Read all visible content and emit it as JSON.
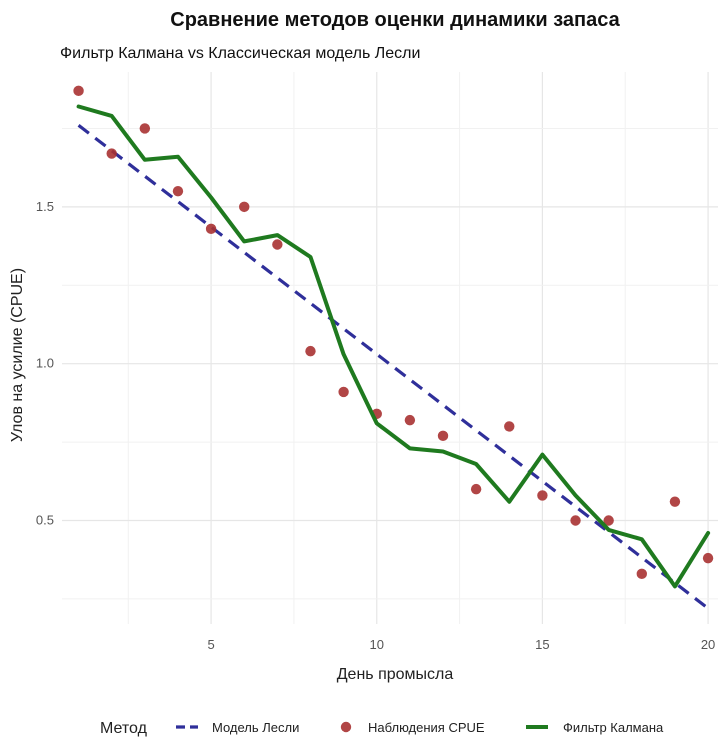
{
  "chart_data": {
    "type": "line",
    "title": "Сравнение методов оценки динамики запаса",
    "subtitle": "Фильтр Калмана vs Классическая модель Лесли",
    "xlabel": "День промысла",
    "ylabel": "Улов на усилие (CPUE)",
    "xlim": [
      0.5,
      20.3
    ],
    "ylim": [
      0.17,
      1.93
    ],
    "x_ticks": [
      5,
      10,
      15,
      20
    ],
    "y_ticks": [
      0.5,
      1.0,
      1.5
    ],
    "y_tick_labels": [
      "0.5",
      "1.0",
      "1.5"
    ],
    "grid": true,
    "legend_position": "bottom",
    "legend_title": "Метод",
    "series": [
      {
        "name": "Модель Лесли",
        "style": "dashed-line",
        "color": "#2f2f9a",
        "x": [
          1,
          20
        ],
        "values": [
          1.76,
          0.22
        ]
      },
      {
        "name": "Наблюдения CPUE",
        "style": "points",
        "color": "#a83232",
        "x": [
          1,
          2,
          3,
          4,
          5,
          6,
          7,
          8,
          9,
          10,
          11,
          12,
          13,
          14,
          15,
          16,
          17,
          18,
          19,
          20
        ],
        "values": [
          1.87,
          1.67,
          1.75,
          1.55,
          1.43,
          1.5,
          1.38,
          1.04,
          0.91,
          0.84,
          0.82,
          0.77,
          0.6,
          0.8,
          0.58,
          0.5,
          0.5,
          0.33,
          0.56,
          0.38
        ]
      },
      {
        "name": "Фильтр Калмана",
        "style": "solid-line",
        "color": "#1f7a1f",
        "x": [
          1,
          2,
          3,
          4,
          5,
          6,
          7,
          8,
          9,
          10,
          11,
          12,
          13,
          14,
          15,
          16,
          17,
          18,
          19,
          20
        ],
        "values": [
          1.82,
          1.79,
          1.65,
          1.66,
          1.53,
          1.39,
          1.41,
          1.34,
          1.03,
          0.81,
          0.73,
          0.72,
          0.68,
          0.56,
          0.71,
          0.58,
          0.47,
          0.44,
          0.29,
          0.46
        ]
      }
    ],
    "legend_order": [
      "Модель Лесли",
      "Наблюдения CPUE",
      "Фильтр Калмана"
    ]
  }
}
